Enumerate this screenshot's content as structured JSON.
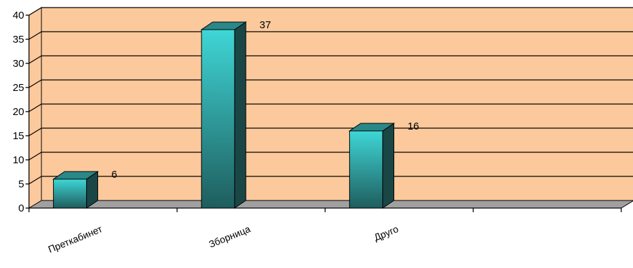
{
  "chart_data": {
    "type": "bar",
    "title": "",
    "xlabel": "",
    "ylabel": "",
    "categories": [
      "Преткабинет",
      "Зборница",
      "Друго",
      ""
    ],
    "values": [
      6,
      37,
      16,
      null
    ],
    "ylim": [
      0,
      40
    ],
    "yticks": [
      0,
      5,
      10,
      15,
      20,
      25,
      30,
      35,
      40
    ],
    "grid": true,
    "legend": "none",
    "style": "3d-column",
    "colors": {
      "wall": "#fcc99c",
      "floor": "#a0a0a0",
      "bar_top": "#3fd6d6",
      "bar_bottom": "#1f5d5d",
      "bar_side": "#1a4646",
      "bar_cap": "#2a8888",
      "gridline": "#000000"
    }
  }
}
